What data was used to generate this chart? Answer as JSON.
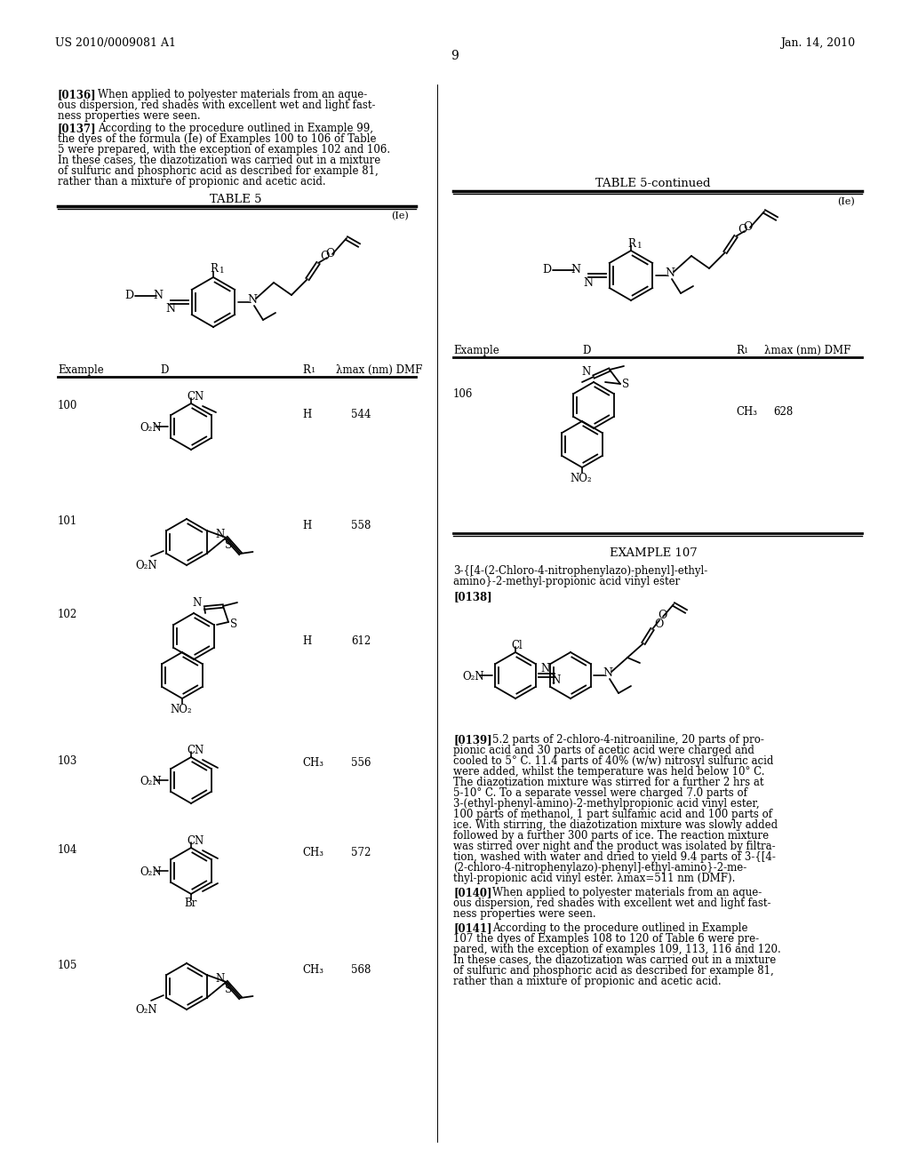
{
  "page_header_left": "US 2010/0009081 A1",
  "page_header_right": "Jan. 14, 2010",
  "page_number": "9",
  "background_color": "#ffffff"
}
